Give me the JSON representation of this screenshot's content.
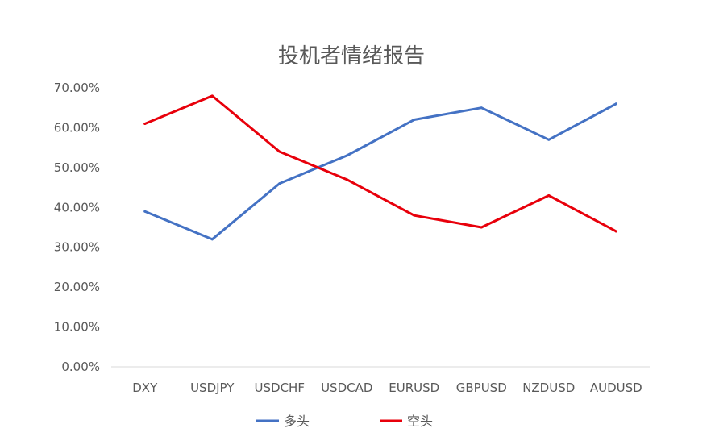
{
  "chart_data": {
    "type": "line",
    "title": "投机者情绪报告",
    "xlabel": "",
    "ylabel": "",
    "categories": [
      "DXY",
      "USDJPY",
      "USDCHF",
      "USDCAD",
      "EURUSD",
      "GBPUSD",
      "NZDUSD",
      "AUDUSD"
    ],
    "ylim": [
      0,
      0.7
    ],
    "yticks": [
      {
        "value": 0.0,
        "label": "0.00%"
      },
      {
        "value": 0.1,
        "label": "10.00%"
      },
      {
        "value": 0.2,
        "label": "20.00%"
      },
      {
        "value": 0.3,
        "label": "30.00%"
      },
      {
        "value": 0.4,
        "label": "40.00%"
      },
      {
        "value": 0.5,
        "label": "50.00%"
      },
      {
        "value": 0.6,
        "label": "60.00%"
      },
      {
        "value": 0.7,
        "label": "70.00%"
      }
    ],
    "grid": false,
    "legend_position": "bottom",
    "series": [
      {
        "name": "多头",
        "color": "#4472C4",
        "values": [
          0.39,
          0.32,
          0.46,
          0.53,
          0.62,
          0.65,
          0.57,
          0.66
        ]
      },
      {
        "name": "空头",
        "color": "#E8000B",
        "values": [
          0.61,
          0.68,
          0.54,
          0.47,
          0.38,
          0.35,
          0.43,
          0.34
        ]
      }
    ]
  }
}
